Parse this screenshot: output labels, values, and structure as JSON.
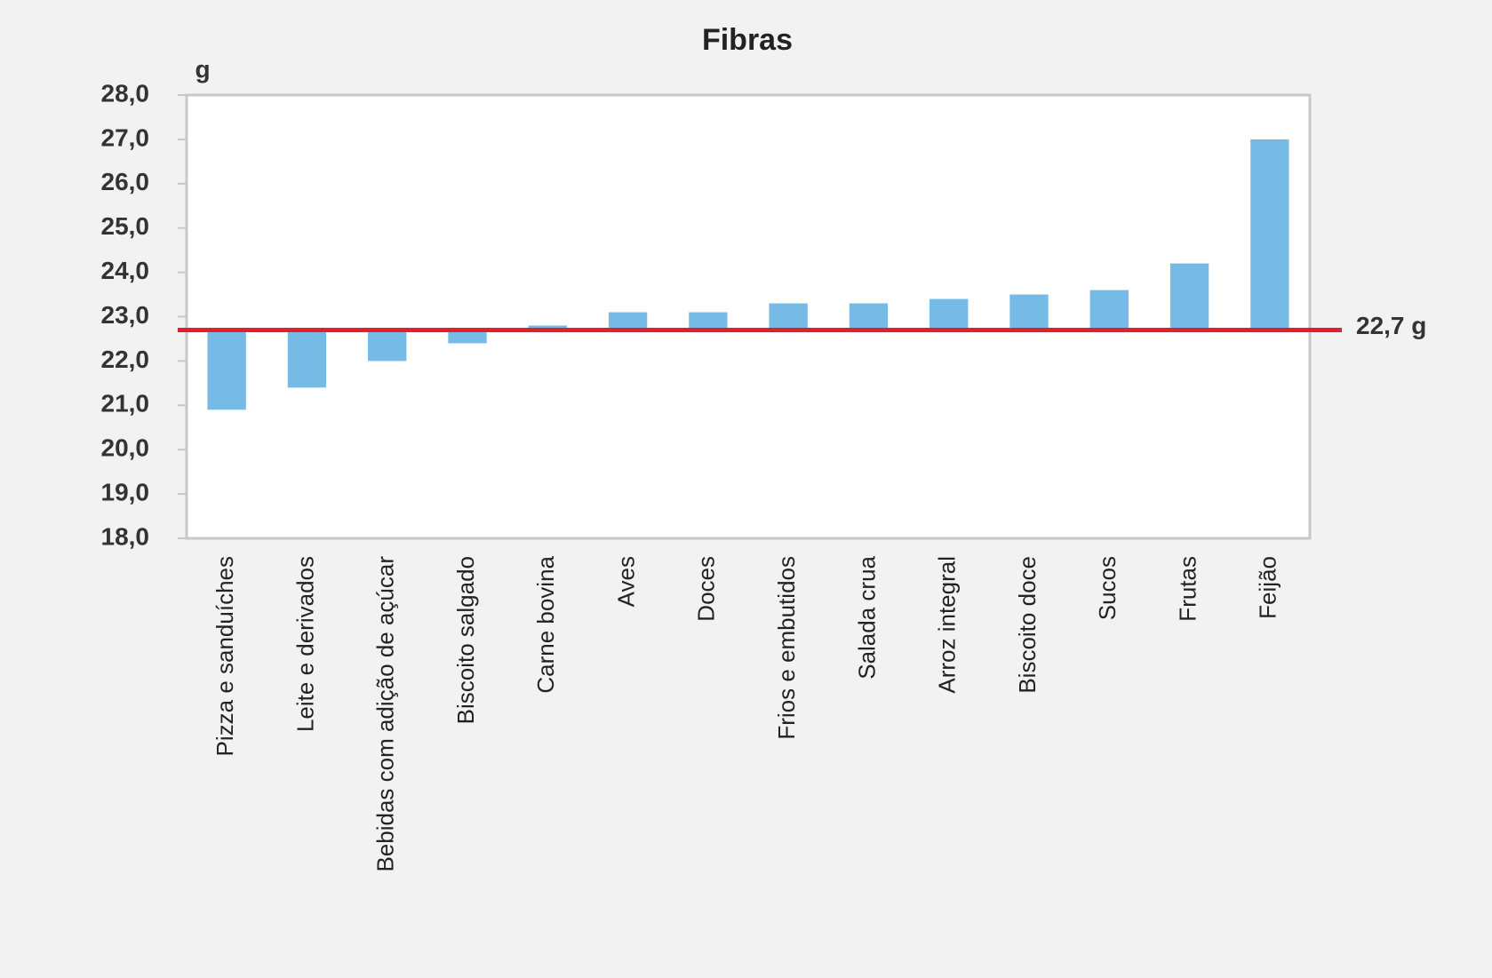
{
  "chart_data": {
    "type": "bar",
    "title": "Fibras",
    "y_label": "g",
    "categories": [
      "Pizza e sanduíches",
      "Leite e derivados",
      "Bebidas com adição de açúcar",
      "Biscoito salgado",
      "Carne bovina",
      "Aves",
      "Doces",
      "Frios e embutidos",
      "Salada crua",
      "Arroz integral",
      "Biscoito doce",
      "Sucos",
      "Frutas",
      "Feijão"
    ],
    "values": [
      20.9,
      21.4,
      22.0,
      22.4,
      22.8,
      23.1,
      23.1,
      23.3,
      23.3,
      23.4,
      23.5,
      23.6,
      24.2,
      27.0
    ],
    "color": "#75bbe6",
    "ylim": [
      18,
      28
    ],
    "yticks": [
      {
        "value": 18,
        "label": "18,0"
      },
      {
        "value": 19,
        "label": "19,0"
      },
      {
        "value": 20,
        "label": "20,0"
      },
      {
        "value": 21,
        "label": "21,0"
      },
      {
        "value": 22,
        "label": "22,0"
      },
      {
        "value": 23,
        "label": "23,0"
      },
      {
        "value": 24,
        "label": "24,0"
      },
      {
        "value": 25,
        "label": "25,0"
      },
      {
        "value": 26,
        "label": "26,0"
      },
      {
        "value": 27,
        "label": "27,0"
      },
      {
        "value": 28,
        "label": "28,0"
      }
    ],
    "grid": false,
    "reference_line": {
      "value": 22.7,
      "label": "22,7 g",
      "color": "#e3202a"
    }
  }
}
